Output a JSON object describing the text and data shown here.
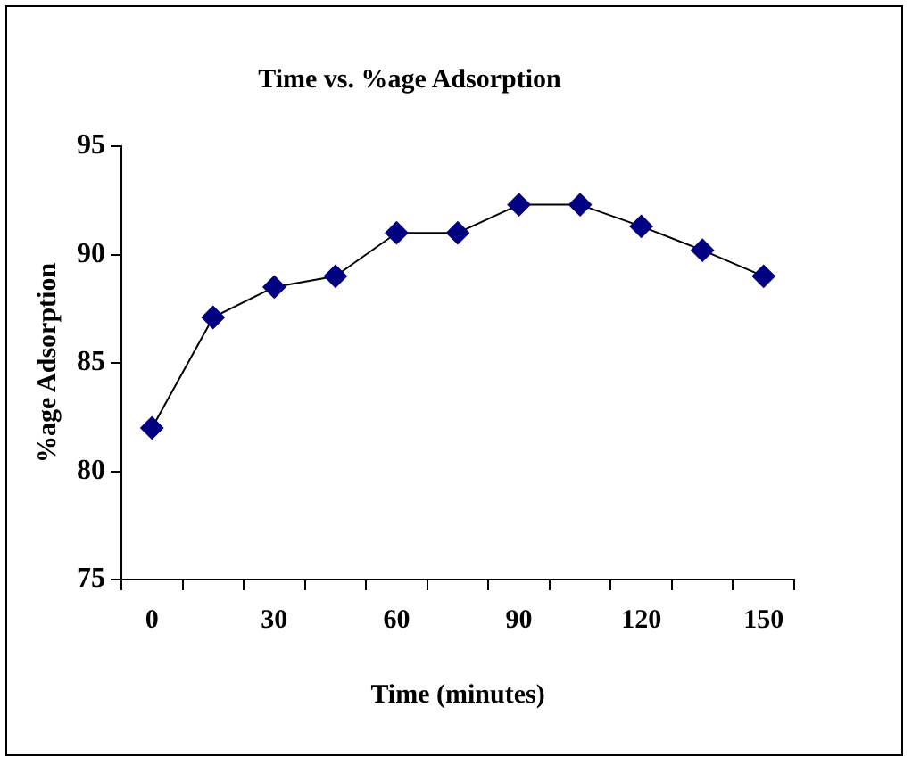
{
  "chart_data": {
    "type": "line",
    "title": "Time vs. %age Adsorption",
    "xlabel": "Time (minutes)",
    "ylabel": "%age Adsorption",
    "categories": [
      "0",
      null,
      "30",
      null,
      "60",
      null,
      "90",
      null,
      "120",
      null,
      "150"
    ],
    "series": [
      {
        "color": "#000080",
        "values": [
          82.0,
          87.1,
          88.5,
          89.0,
          91.0,
          91.0,
          92.3,
          92.3,
          91.3,
          90.2,
          89.0
        ]
      }
    ],
    "ylim": [
      75,
      95
    ],
    "yticks": [
      75,
      80,
      85,
      90,
      95
    ],
    "grid": false,
    "legend": false,
    "marker": "diamond",
    "line_style": "solid"
  }
}
